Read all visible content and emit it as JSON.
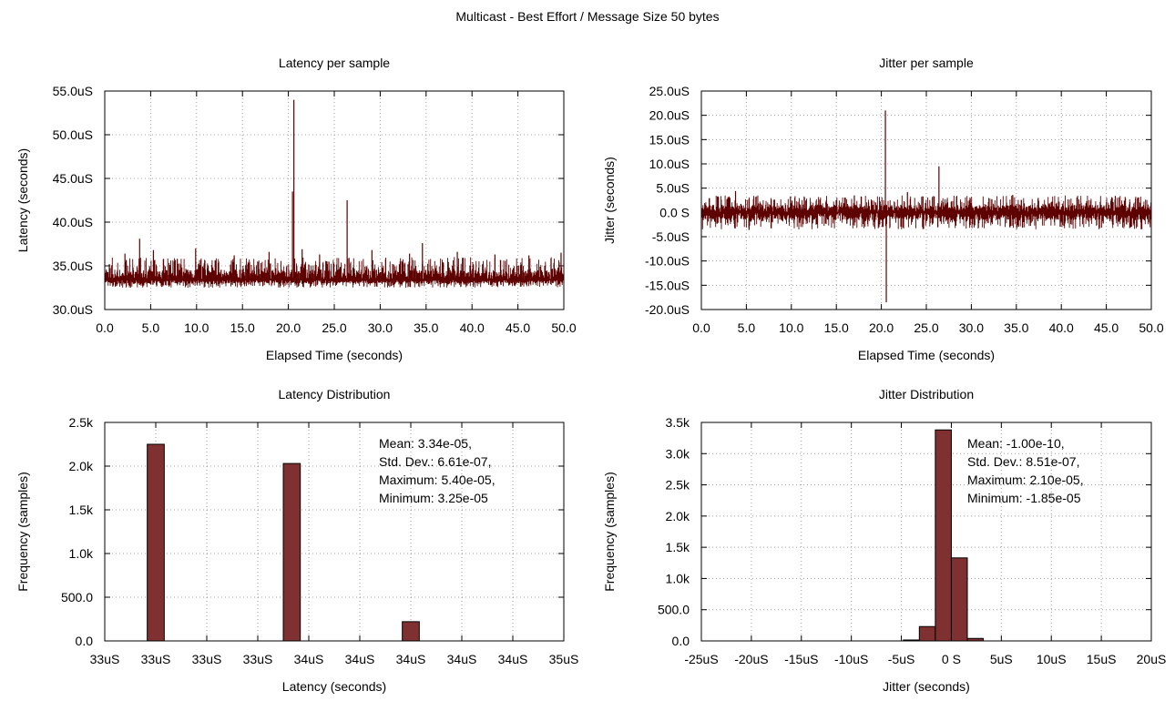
{
  "page_title": "Multicast - Best Effort / Message Size 50 bytes",
  "colors": {
    "series": "#5e0000",
    "bar_fill": "#7f3030",
    "bar_stroke": "#000000",
    "grid": "#a0a0a0"
  },
  "chart_data": [
    {
      "id": "latency-per-sample",
      "type": "line",
      "title": "Latency per sample",
      "xlabel": "Elapsed Time (seconds)",
      "ylabel": "Latency (seconds)",
      "xlim": [
        0,
        50
      ],
      "ylim": [
        30,
        55
      ],
      "x_ticks": [
        "0.0",
        "5.0",
        "10.0",
        "15.0",
        "20.0",
        "25.0",
        "30.0",
        "35.0",
        "40.0",
        "45.0",
        "50.0"
      ],
      "y_ticks": [
        "30.0uS",
        "35.0uS",
        "40.0uS",
        "45.0uS",
        "50.0uS",
        "55.0uS"
      ],
      "grid": true,
      "noise_band": {
        "base": 33.4,
        "low": 32.5,
        "high": 36.0,
        "samples": 1100
      },
      "x": [
        0.5,
        2.2,
        3.8,
        5.3,
        7.9,
        9.9,
        14.1,
        17.9,
        20.45,
        20.6,
        21.5,
        23.4,
        26.4,
        29.1,
        33.2,
        34.6,
        38.4,
        42.5,
        46.2,
        49.7
      ],
      "y": [
        35.2,
        36.4,
        38.1,
        36.8,
        35.8,
        37.0,
        36.2,
        36.6,
        43.5,
        54.0,
        36.9,
        36.3,
        42.5,
        36.8,
        36.4,
        37.6,
        36.6,
        36.3,
        36.2,
        36.5
      ]
    },
    {
      "id": "jitter-per-sample",
      "type": "line",
      "title": "Jitter per sample",
      "xlabel": "Elapsed Time (seconds)",
      "ylabel": "Jitter (seconds)",
      "xlim": [
        0,
        50
      ],
      "ylim": [
        -20,
        25
      ],
      "x_ticks": [
        "0.0",
        "5.0",
        "10.0",
        "15.0",
        "20.0",
        "25.0",
        "30.0",
        "35.0",
        "40.0",
        "45.0",
        "50.0"
      ],
      "y_ticks": [
        "-20.0uS",
        "-15.0uS",
        "-10.0uS",
        "-5.0uS",
        "0.0 S",
        "5.0uS",
        "10.0uS",
        "15.0uS",
        "20.0uS",
        "25.0uS"
      ],
      "grid": true,
      "noise_band": {
        "base": 0.0,
        "low": -3.5,
        "high": 3.5,
        "samples": 1100
      },
      "x": [
        3.8,
        5.3,
        9.9,
        17.0,
        20.45,
        20.55,
        22.9,
        26.4,
        34.6,
        46.0
      ],
      "y": [
        4.4,
        -3.6,
        3.3,
        3.5,
        21.0,
        -18.5,
        4.2,
        9.5,
        3.6,
        3.4
      ]
    },
    {
      "id": "latency-distribution",
      "type": "bar",
      "title": "Latency Distribution",
      "xlabel": "Latency (seconds)",
      "ylabel": "Frequency (samples)",
      "xlim": [
        0,
        9
      ],
      "ylim": [
        0,
        2500
      ],
      "x_ticks": [
        "33uS",
        "33uS",
        "33uS",
        "33uS",
        "34uS",
        "34uS",
        "34uS",
        "34uS",
        "34uS",
        "35uS"
      ],
      "y_ticks": [
        "0.0",
        "500.0",
        "1.0k",
        "1.5k",
        "2.0k",
        "2.5k"
      ],
      "grid": true,
      "bar_width": 0.3333,
      "x": [
        1.0,
        3.667,
        6.0
      ],
      "values": [
        2250,
        2030,
        220
      ],
      "stats": [
        "Mean: 3.34e-05,",
        "Std. Dev.: 6.61e-07,",
        "Maximum: 5.40e-05,",
        "Minimum: 3.25e-05"
      ]
    },
    {
      "id": "jitter-distribution",
      "type": "bar",
      "title": "Jitter Distribution",
      "xlabel": "Jitter (seconds)",
      "ylabel": "Frequency (samples)",
      "xlim": [
        -25,
        20
      ],
      "ylim": [
        0,
        3500
      ],
      "x_ticks": [
        "-25uS",
        "-20uS",
        "-15uS",
        "-10uS",
        "-5uS",
        "0 S",
        "5uS",
        "10uS",
        "15uS",
        "20uS"
      ],
      "y_ticks": [
        "0.0",
        "500.0",
        "1.0k",
        "1.5k",
        "2.0k",
        "2.5k",
        "3.0k",
        "3.5k"
      ],
      "grid": true,
      "bar_width": 1.6,
      "x": [
        -4.0,
        -2.4,
        -0.8,
        0.8,
        2.4
      ],
      "values": [
        15,
        230,
        3380,
        1330,
        40
      ],
      "stats": [
        "Mean: -1.00e-10,",
        "Std. Dev.: 8.51e-07,",
        "Maximum: 2.10e-05,",
        "Minimum: -1.85e-05"
      ]
    }
  ]
}
